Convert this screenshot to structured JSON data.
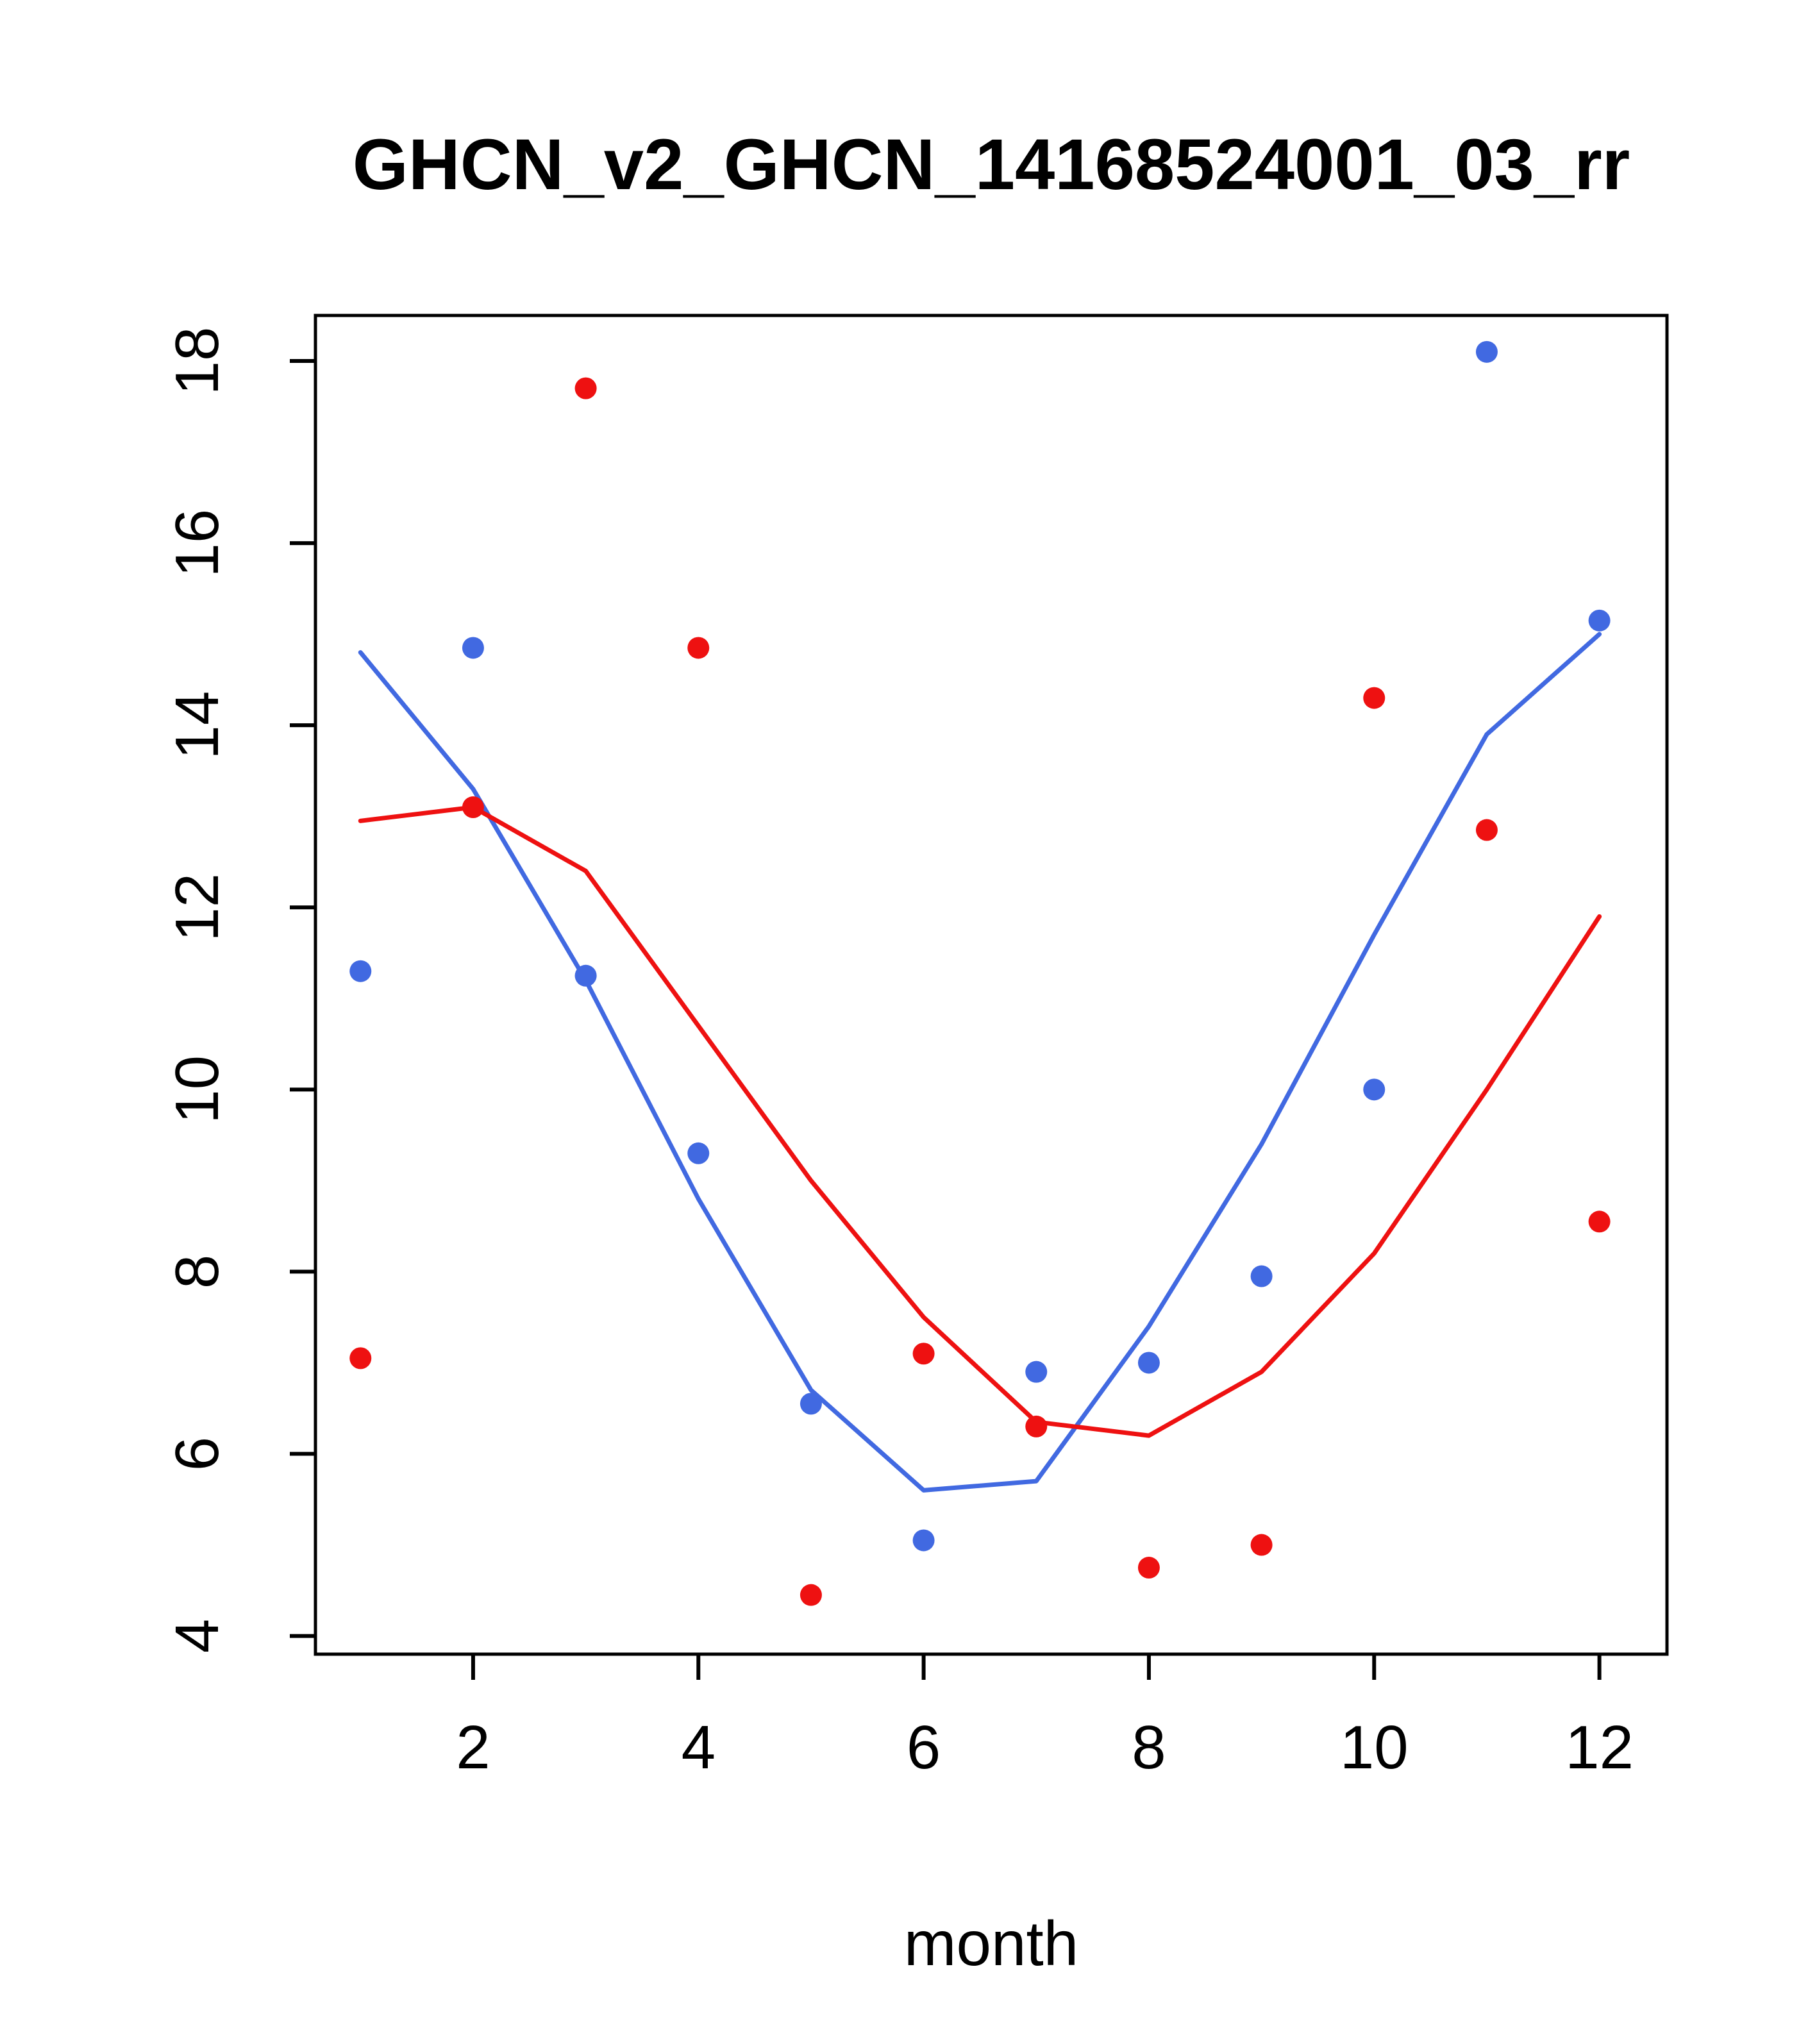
{
  "chart_data": {
    "type": "scatter",
    "title": "GHCN_v2_GHCN_14168524001_03_rr",
    "xlabel": "month",
    "ylabel": "",
    "xlim": [
      0.6,
      12.6
    ],
    "ylim": [
      3.8,
      18.5
    ],
    "x_ticks": [
      2,
      4,
      6,
      8,
      10,
      12
    ],
    "y_ticks": [
      4,
      6,
      8,
      10,
      12,
      14,
      16,
      18
    ],
    "grid": false,
    "legend": "none",
    "x": [
      1,
      2,
      3,
      4,
      5,
      6,
      7,
      8,
      9,
      10,
      11,
      12
    ],
    "colors": {
      "blue": "#4169E1",
      "red": "#EE1111",
      "axis": "#000000",
      "background": "#FFFFFF"
    },
    "series": [
      {
        "name": "blue-line",
        "type": "line",
        "color": "#4169E1",
        "values": [
          14.8,
          13.3,
          11.2,
          8.8,
          6.7,
          5.6,
          5.7,
          7.4,
          9.4,
          11.7,
          13.9,
          15.0
        ]
      },
      {
        "name": "red-line",
        "type": "line",
        "color": "#EE1111",
        "values": [
          12.95,
          13.1,
          12.4,
          10.7,
          9.0,
          7.5,
          6.35,
          6.2,
          6.9,
          8.2,
          10.0,
          11.9
        ]
      },
      {
        "name": "blue-points",
        "type": "points",
        "color": "#4169E1",
        "values": [
          11.3,
          14.85,
          11.25,
          9.3,
          6.55,
          5.05,
          6.9,
          7.0,
          7.95,
          10.0,
          18.1,
          15.15
        ]
      },
      {
        "name": "red-points",
        "type": "points",
        "color": "#EE1111",
        "values": [
          7.05,
          13.1,
          17.7,
          14.85,
          4.45,
          7.1,
          6.3,
          4.75,
          5.0,
          14.3,
          12.85,
          8.55
        ]
      }
    ]
  }
}
